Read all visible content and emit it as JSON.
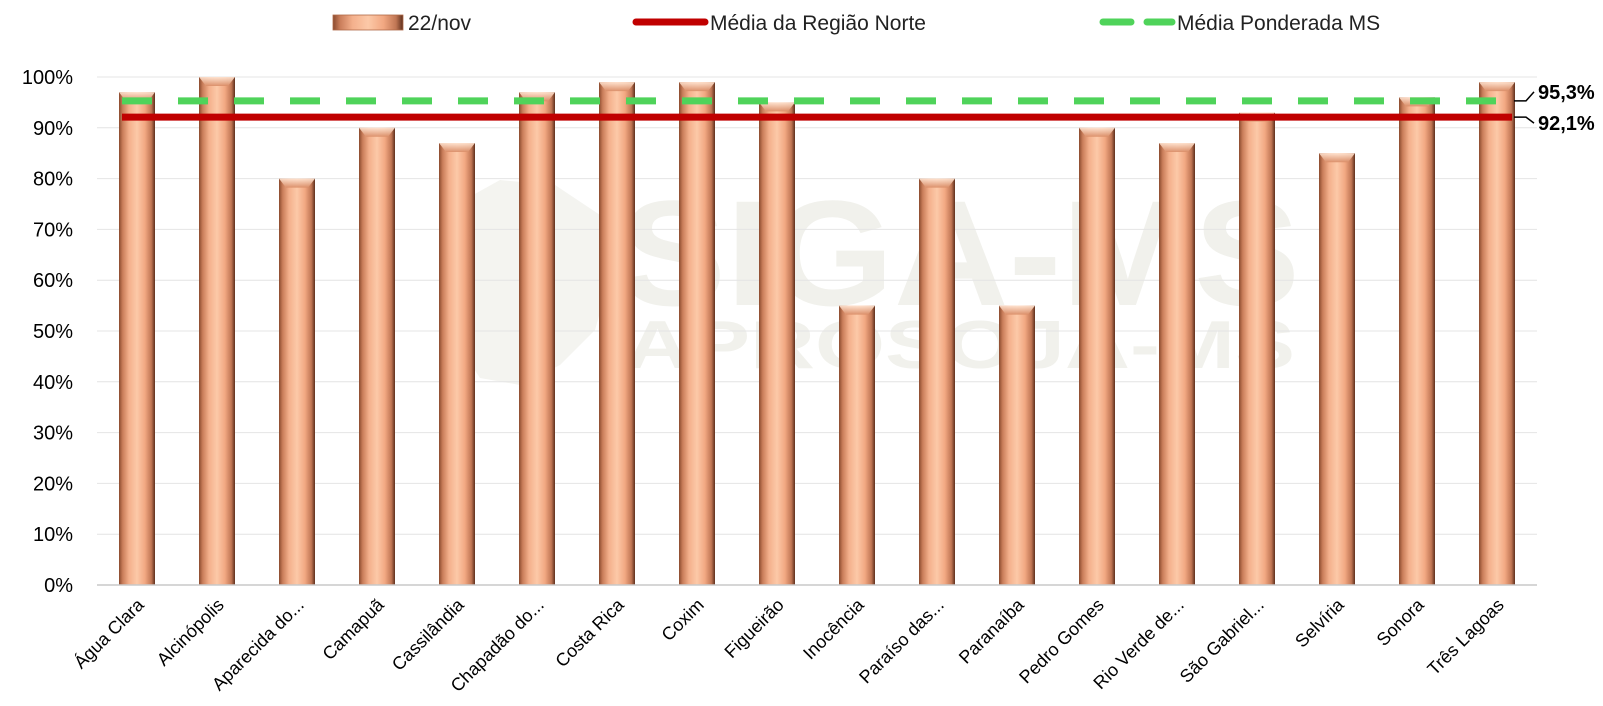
{
  "chart_data": {
    "type": "bar",
    "categories": [
      "Água Clara",
      "Alcinópolis",
      "Aparecida do...",
      "Camapuã",
      "Cassilândia",
      "Chapadão do...",
      "Costa Rica",
      "Coxim",
      "Figueirão",
      "Inocência",
      "Paraíso das...",
      "Paranaíba",
      "Pedro Gomes",
      "Rio Verde de...",
      "São Gabriel...",
      "Selvíria",
      "Sonora",
      "Três Lagoas"
    ],
    "series": [
      {
        "name": "22/nov",
        "values": [
          97,
          100,
          80,
          90,
          87,
          97,
          99,
          99,
          95,
          55,
          80,
          55,
          90,
          87,
          93,
          85,
          96,
          99
        ],
        "color": "#f0a07c"
      }
    ],
    "reference_lines": [
      {
        "name": "Média da Região Norte",
        "value": 92.1,
        "label": "92,1%",
        "color": "#c00000",
        "style": "solid"
      },
      {
        "name": "Média Ponderada MS",
        "value": 95.3,
        "label": "95,3%",
        "color": "#4fd35a",
        "style": "dashed"
      }
    ],
    "y_ticks": [
      "0%",
      "10%",
      "20%",
      "30%",
      "40%",
      "50%",
      "60%",
      "70%",
      "80%",
      "90%",
      "100%"
    ],
    "ylim": [
      0,
      100
    ],
    "grid": true,
    "legend_position": "top",
    "watermark": {
      "line1": "SIGA-MS",
      "line2": "APROSOJA-MS"
    }
  }
}
